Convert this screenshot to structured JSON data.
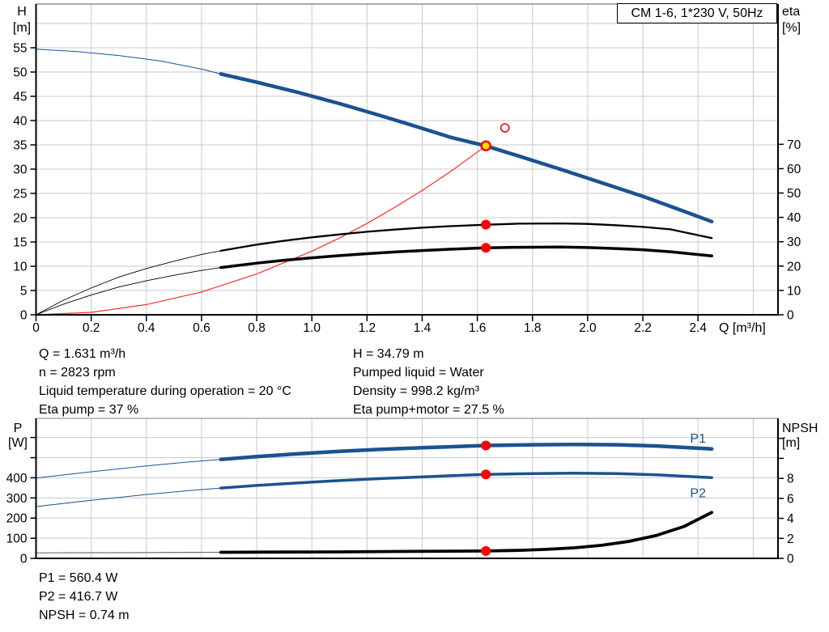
{
  "title": "CM 1-6, 1*230 V, 50Hz",
  "colors": {
    "curve_blue": "#1b5291",
    "curve_black": "#000000",
    "curve_red": "#ff2a2a",
    "thin_gray": "#6f6f6f",
    "marker_red": "#ff0000",
    "marker_yellow": "#ffe600",
    "grid": "#c9c9c9",
    "axis": "#000000",
    "border_gray": "#999999",
    "label_blue": "#1b5291"
  },
  "info": {
    "top_left": [
      "Q = 1.631 m³/h",
      "n = 2823 rpm",
      "Liquid temperature during operation = 20 °C",
      "Eta pump = 37 %"
    ],
    "top_right": [
      "H = 34.79 m",
      "Pumped liquid = Water",
      "Density = 998.2 kg/m³",
      "Eta pump+motor = 27.5 %"
    ],
    "bottom": [
      "P1 = 560.4 W",
      "P2 = 416.7 W",
      "NPSH = 0.74 m"
    ]
  },
  "chart_data": [
    {
      "id": "top",
      "type": "line",
      "x_axis": {
        "label": "Q [m³/h]",
        "min": 0,
        "max": 2.69,
        "ticks": [
          [
            0,
            "0"
          ],
          [
            0.2,
            "0.2"
          ],
          [
            0.4,
            "0.4"
          ],
          [
            0.6,
            "0.6"
          ],
          [
            0.8,
            "0.8"
          ],
          [
            1.0,
            "1.0"
          ],
          [
            1.2,
            "1.2"
          ],
          [
            1.4,
            "1.4"
          ],
          [
            1.6,
            "1.6"
          ],
          [
            1.8,
            "1.8"
          ],
          [
            2.0,
            "2.0"
          ],
          [
            2.2,
            "2.2"
          ],
          [
            2.4,
            "2.4"
          ]
        ],
        "grid": [
          0.2,
          0.4,
          0.6,
          0.8,
          1.0,
          1.2,
          1.4,
          1.6,
          1.8,
          2.0,
          2.2,
          2.4,
          2.6
        ]
      },
      "y_left": {
        "label_lines": [
          "H",
          "[m]"
        ],
        "min": 0,
        "max": 64,
        "ticks": [
          [
            0,
            "0"
          ],
          [
            5,
            "5"
          ],
          [
            10,
            "10"
          ],
          [
            15,
            "15"
          ],
          [
            20,
            "20"
          ],
          [
            25,
            "25"
          ],
          [
            30,
            "30"
          ],
          [
            35,
            "35"
          ],
          [
            40,
            "40"
          ],
          [
            45,
            "45"
          ],
          [
            50,
            "50"
          ],
          [
            55,
            "55"
          ]
        ],
        "grid": [
          5,
          10,
          15,
          20,
          25,
          30,
          35,
          40,
          45,
          50,
          55,
          60
        ]
      },
      "y_right": {
        "label_lines": [
          "eta",
          "[%]"
        ],
        "min": 0,
        "max": 127.6,
        "ticks": [
          [
            0,
            "0"
          ],
          [
            10,
            "10"
          ],
          [
            20,
            "20"
          ],
          [
            30,
            "30"
          ],
          [
            40,
            "40"
          ],
          [
            50,
            "50"
          ],
          [
            60,
            "60"
          ],
          [
            70,
            "70"
          ]
        ]
      },
      "series": [
        {
          "name": "system-curve",
          "axis": "left",
          "color": "curve_red",
          "width": 1.2,
          "points": [
            [
              0,
              0
            ],
            [
              0.2,
              0.5
            ],
            [
              0.4,
              2.1
            ],
            [
              0.6,
              4.7
            ],
            [
              0.8,
              8.4
            ],
            [
              1.0,
              13.1
            ],
            [
              1.1,
              15.8
            ],
            [
              1.2,
              18.8
            ],
            [
              1.3,
              22.1
            ],
            [
              1.4,
              25.6
            ],
            [
              1.5,
              29.4
            ],
            [
              1.631,
              34.79
            ]
          ]
        },
        {
          "name": "eta-pump-thin",
          "axis": "right",
          "color": "curve_black",
          "width": 0.9,
          "points": [
            [
              0,
              0
            ],
            [
              0.1,
              6
            ],
            [
              0.2,
              11
            ],
            [
              0.3,
              15.5
            ],
            [
              0.4,
              19
            ],
            [
              0.5,
              22
            ],
            [
              0.6,
              24.8
            ],
            [
              0.67,
              26.3
            ]
          ]
        },
        {
          "name": "eta-pump-motor-thin",
          "axis": "right",
          "color": "curve_black",
          "width": 0.9,
          "points": [
            [
              0,
              0
            ],
            [
              0.1,
              4.4
            ],
            [
              0.2,
              8.1
            ],
            [
              0.3,
              11.4
            ],
            [
              0.4,
              14
            ],
            [
              0.5,
              16.2
            ],
            [
              0.6,
              18.2
            ],
            [
              0.67,
              19.4
            ]
          ]
        },
        {
          "name": "eta-pump",
          "axis": "right",
          "color": "curve_black",
          "width": 2.3,
          "points": [
            [
              0.67,
              26.3
            ],
            [
              0.8,
              28.8
            ],
            [
              0.9,
              30.4
            ],
            [
              1.0,
              31.8
            ],
            [
              1.1,
              33.0
            ],
            [
              1.2,
              34.1
            ],
            [
              1.3,
              35.0
            ],
            [
              1.4,
              35.8
            ],
            [
              1.5,
              36.4
            ],
            [
              1.631,
              37.0
            ],
            [
              1.75,
              37.4
            ],
            [
              1.9,
              37.5
            ],
            [
              2.0,
              37.3
            ],
            [
              2.1,
              36.8
            ],
            [
              2.2,
              36.1
            ],
            [
              2.3,
              35.1
            ],
            [
              2.45,
              31.5
            ]
          ]
        },
        {
          "name": "eta-pump-motor",
          "axis": "right",
          "color": "curve_black",
          "width": 3.5,
          "points": [
            [
              0.67,
              19.4
            ],
            [
              0.8,
              21.2
            ],
            [
              0.9,
              22.4
            ],
            [
              1.0,
              23.4
            ],
            [
              1.1,
              24.3
            ],
            [
              1.2,
              25.1
            ],
            [
              1.3,
              25.8
            ],
            [
              1.4,
              26.4
            ],
            [
              1.5,
              26.9
            ],
            [
              1.631,
              27.5
            ],
            [
              1.75,
              27.7
            ],
            [
              1.9,
              27.8
            ],
            [
              2.0,
              27.6
            ],
            [
              2.1,
              27.2
            ],
            [
              2.2,
              26.7
            ],
            [
              2.3,
              25.9
            ],
            [
              2.45,
              24.2
            ]
          ]
        },
        {
          "name": "qh-thin",
          "axis": "left",
          "color": "curve_blue",
          "width": 1,
          "points": [
            [
              0,
              54.7
            ],
            [
              0.15,
              54.2
            ],
            [
              0.3,
              53.4
            ],
            [
              0.45,
              52.3
            ],
            [
              0.6,
              50.6
            ],
            [
              0.67,
              49.6
            ]
          ]
        },
        {
          "name": "qh",
          "axis": "left",
          "color": "curve_blue",
          "width": 4.5,
          "points": [
            [
              0.67,
              49.6
            ],
            [
              0.8,
              47.9
            ],
            [
              0.95,
              45.8
            ],
            [
              1.1,
              43.5
            ],
            [
              1.25,
              41.0
            ],
            [
              1.4,
              38.4
            ],
            [
              1.5,
              36.6
            ],
            [
              1.631,
              34.79
            ],
            [
              1.75,
              32.7
            ],
            [
              1.9,
              30.0
            ],
            [
              2.05,
              27.2
            ],
            [
              2.2,
              24.4
            ],
            [
              2.35,
              21.3
            ],
            [
              2.45,
              19.2
            ]
          ]
        }
      ],
      "markers": [
        {
          "name": "requested-duty-point",
          "shape": "open",
          "stroke": "marker_red",
          "axis": "left",
          "q": 1.7,
          "v": 38.5,
          "r": 5,
          "interactable": false
        },
        {
          "name": "eta-pump-point",
          "shape": "dot",
          "fill": "marker_red",
          "axis": "right",
          "q": 1.631,
          "v": 37.0,
          "r": 6,
          "interactable": false
        },
        {
          "name": "eta-pump-motor-point",
          "shape": "dot",
          "fill": "marker_red",
          "axis": "right",
          "q": 1.631,
          "v": 27.5,
          "r": 6,
          "interactable": false
        },
        {
          "name": "duty-point",
          "shape": "dot",
          "fill": "marker_yellow",
          "stroke": "marker_red",
          "axis": "left",
          "q": 1.631,
          "v": 34.79,
          "r": 5.5,
          "sw": 2.5,
          "interactable": true
        }
      ],
      "annotations": []
    },
    {
      "id": "bottom",
      "type": "line",
      "x_axis": {
        "label": "",
        "min": 0,
        "max": 2.69,
        "ticks": [],
        "grid": [
          0.2,
          0.4,
          0.6,
          0.8,
          1.0,
          1.2,
          1.4,
          1.6,
          1.8,
          2.0,
          2.2,
          2.4,
          2.6
        ]
      },
      "y_left": {
        "label_lines": [
          "P",
          "[W]"
        ],
        "min": 0,
        "max": 695,
        "ticks": [
          [
            0,
            "0"
          ],
          [
            100,
            "100"
          ],
          [
            200,
            "200"
          ],
          [
            300,
            "300"
          ],
          [
            400,
            "400"
          ],
          [
            500,
            null
          ],
          [
            600,
            null
          ]
        ],
        "grid": [
          100,
          200,
          300,
          400,
          500,
          600
        ]
      },
      "y_right": {
        "label_lines": [
          "NPSH",
          "[m]"
        ],
        "min": 0,
        "max": 14,
        "ticks": [
          [
            0,
            "0"
          ],
          [
            2,
            "2"
          ],
          [
            4,
            "4"
          ],
          [
            6,
            "6"
          ],
          [
            8,
            "8"
          ],
          [
            10,
            null
          ],
          [
            12,
            null
          ]
        ]
      },
      "series": [
        {
          "name": "p1-thin",
          "axis": "left",
          "color": "curve_blue",
          "width": 1,
          "points": [
            [
              0,
              399
            ],
            [
              0.2,
              430
            ],
            [
              0.4,
              459
            ],
            [
              0.55,
              478
            ],
            [
              0.67,
              491
            ]
          ]
        },
        {
          "name": "p2-thin",
          "axis": "left",
          "color": "curve_blue",
          "width": 1,
          "points": [
            [
              0,
              257
            ],
            [
              0.2,
              288
            ],
            [
              0.4,
              317
            ],
            [
              0.55,
              336
            ],
            [
              0.67,
              349
            ]
          ]
        },
        {
          "name": "npsh-thin",
          "axis": "right",
          "color": "thin_gray",
          "width": 1.2,
          "points": [
            [
              0,
              0.55
            ],
            [
              0.3,
              0.57
            ],
            [
              0.55,
              0.6
            ],
            [
              0.67,
              0.61
            ]
          ]
        },
        {
          "name": "p1",
          "axis": "left",
          "color": "curve_blue",
          "width": 4.5,
          "points": [
            [
              0.67,
              491
            ],
            [
              0.8,
              505
            ],
            [
              0.95,
              519
            ],
            [
              1.1,
              531
            ],
            [
              1.25,
              541
            ],
            [
              1.4,
              549
            ],
            [
              1.5,
              554
            ],
            [
              1.631,
              560.4
            ],
            [
              1.8,
              564
            ],
            [
              1.95,
              565.5
            ],
            [
              2.1,
              564
            ],
            [
              2.25,
              558
            ],
            [
              2.45,
              543
            ]
          ]
        },
        {
          "name": "p2",
          "axis": "left",
          "color": "curve_blue",
          "width": 3.5,
          "points": [
            [
              0.67,
              349
            ],
            [
              0.8,
              362
            ],
            [
              0.95,
              375
            ],
            [
              1.1,
              386
            ],
            [
              1.25,
              396
            ],
            [
              1.4,
              404
            ],
            [
              1.5,
              410
            ],
            [
              1.631,
              416.7
            ],
            [
              1.8,
              421
            ],
            [
              1.95,
              422.5
            ],
            [
              2.1,
              421
            ],
            [
              2.25,
              415
            ],
            [
              2.45,
              401
            ]
          ]
        },
        {
          "name": "npsh",
          "axis": "right",
          "color": "curve_black",
          "width": 3.8,
          "points": [
            [
              0.67,
              0.61
            ],
            [
              0.9,
              0.63
            ],
            [
              1.1,
              0.65
            ],
            [
              1.3,
              0.69
            ],
            [
              1.5,
              0.72
            ],
            [
              1.631,
              0.74
            ],
            [
              1.75,
              0.8
            ],
            [
              1.85,
              0.9
            ],
            [
              1.95,
              1.05
            ],
            [
              2.05,
              1.3
            ],
            [
              2.15,
              1.7
            ],
            [
              2.25,
              2.3
            ],
            [
              2.35,
              3.2
            ],
            [
              2.45,
              4.6
            ]
          ]
        }
      ],
      "markers": [
        {
          "name": "p1-point",
          "shape": "dot",
          "fill": "marker_red",
          "axis": "left",
          "q": 1.631,
          "v": 560.4,
          "r": 6,
          "interactable": false
        },
        {
          "name": "p2-point",
          "shape": "dot",
          "fill": "marker_red",
          "axis": "left",
          "q": 1.631,
          "v": 416.7,
          "r": 6,
          "interactable": false
        },
        {
          "name": "npsh-point",
          "shape": "dot",
          "fill": "marker_red",
          "axis": "right",
          "q": 1.631,
          "v": 0.74,
          "r": 6,
          "interactable": false
        }
      ],
      "annotations": [
        {
          "name": "p1-curve-label",
          "text": "P1",
          "q": 2.4,
          "v": 595,
          "axis": "left",
          "color": "label_blue"
        },
        {
          "name": "p2-curve-label",
          "text": "P2",
          "q": 2.4,
          "v": 324,
          "axis": "left",
          "color": "label_blue"
        }
      ]
    }
  ]
}
